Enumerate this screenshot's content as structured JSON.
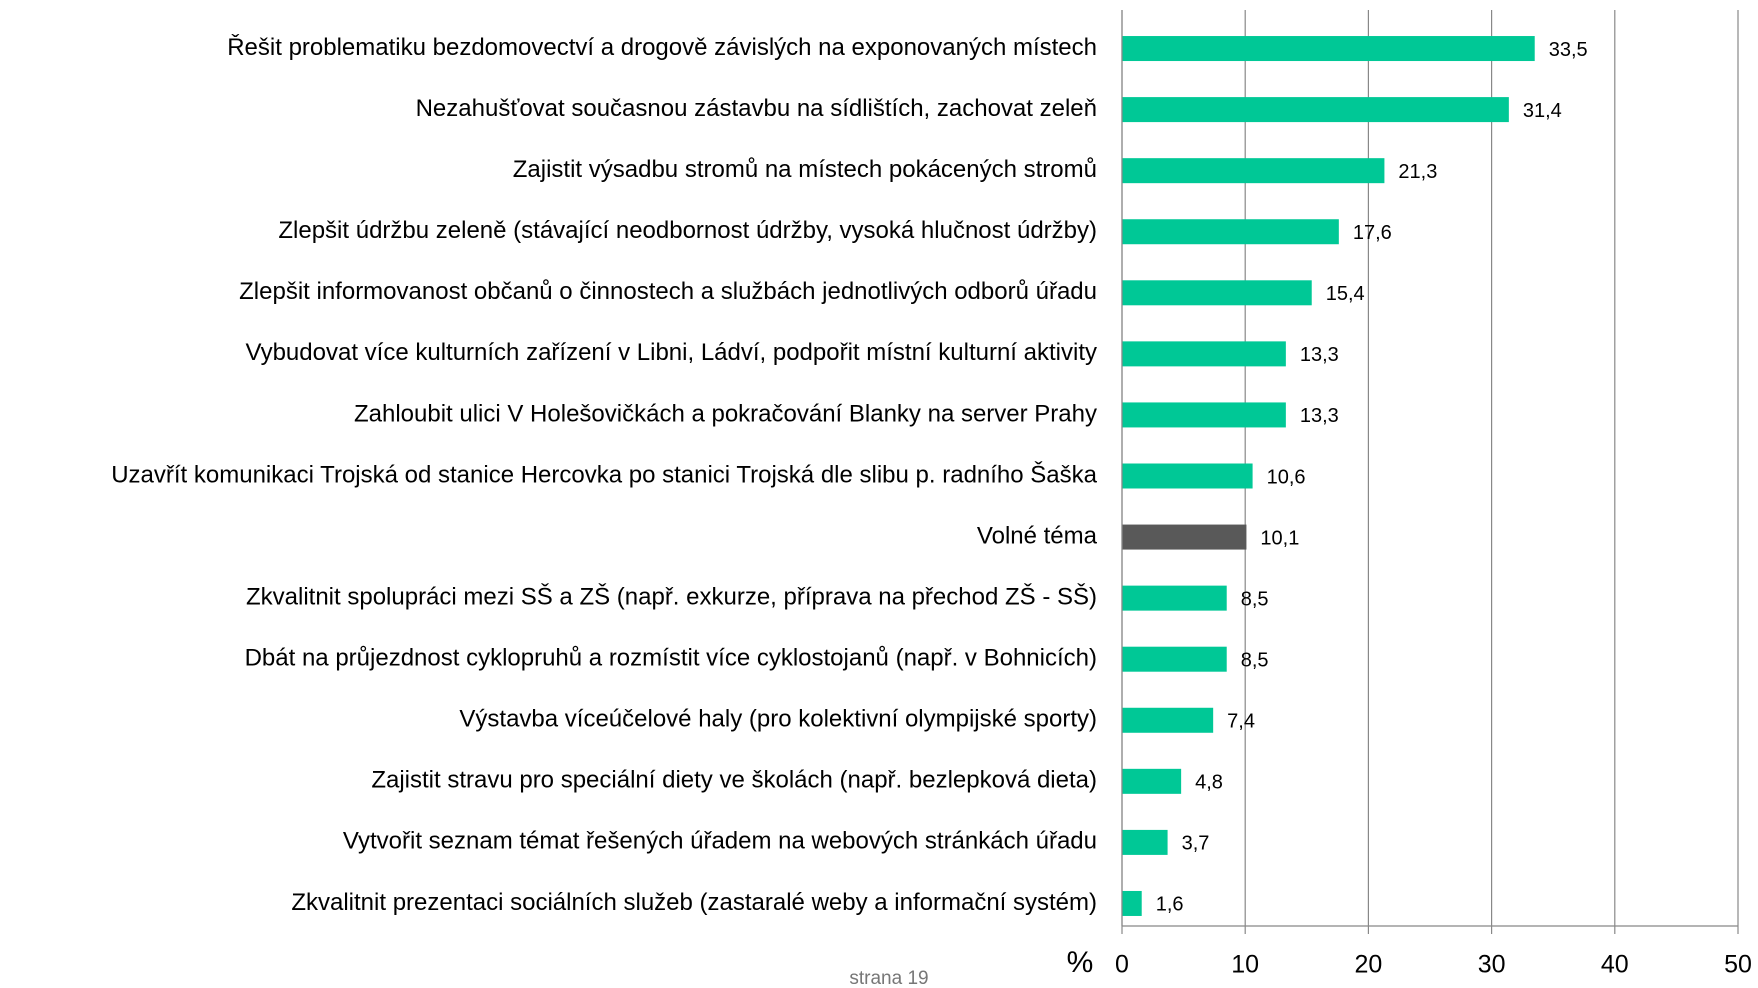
{
  "chart_data": {
    "type": "barh",
    "x_label": "%",
    "categories": [
      "Řešit problematiku bezdomovectví a drogově závislých na exponovaných místech",
      "Nezahušťovat současnou zástavbu na sídlištích, zachovat zeleň",
      "Zajistit výsadbu stromů na místech pokácených stromů",
      "Zlepšit údržbu zeleně (stávající neodbornost údržby,  vysoká hlučnost údržby)",
      "Zlepšit informovanost občanů o činnostech a službách jednotlivých odborů úřadu",
      "Vybudovat více kulturních zařízení v Libni, Ládví, podpořit místní kulturní aktivity",
      "Zahloubit ulici V Holešovičkách a pokračování Blanky na server Prahy",
      "Uzavřít komunikaci Trojská od stanice Hercovka po stanici Trojská dle slibu p. radního Šaška",
      "Volné téma",
      "Zkvalitnit spolupráci mezi SŠ a ZŠ (např. exkurze, příprava na přechod ZŠ - SŠ)",
      "Dbát na průjezdnost cyklopruhů a rozmístit více cyklostojanů (např. v Bohnicích)",
      "Výstavba víceúčelové haly (pro kolektivní olympijské sporty)",
      "Zajistit stravu pro speciální diety ve školách (např. bezlepková dieta)",
      "Vytvořit seznam témat řešených úřadem na webových stránkách úřadu",
      "Zkvalitnit prezentaci sociálních služeb (zastaralé weby a informační systém)"
    ],
    "values": [
      33.5,
      31.4,
      21.3,
      17.6,
      15.4,
      13.3,
      13.3,
      10.6,
      10.1,
      8.5,
      8.5,
      7.4,
      4.8,
      3.7,
      1.6
    ],
    "value_labels": [
      "33,5",
      "31,4",
      "21,3",
      "17,6",
      "15,4",
      "13,3",
      "13,3",
      "10,6",
      "10,1",
      "8,5",
      "8,5",
      "7,4",
      "4,8",
      "3,7",
      "1,6"
    ],
    "colors": [
      "#00c896",
      "#00c896",
      "#00c896",
      "#00c896",
      "#00c896",
      "#00c896",
      "#00c896",
      "#00c896",
      "#595959",
      "#00c896",
      "#00c896",
      "#00c896",
      "#00c896",
      "#00c896",
      "#00c896"
    ],
    "xlim": [
      0,
      50
    ],
    "xticks": [
      0,
      10,
      20,
      30,
      40,
      50
    ],
    "grid": true
  },
  "footer": "strana 19"
}
